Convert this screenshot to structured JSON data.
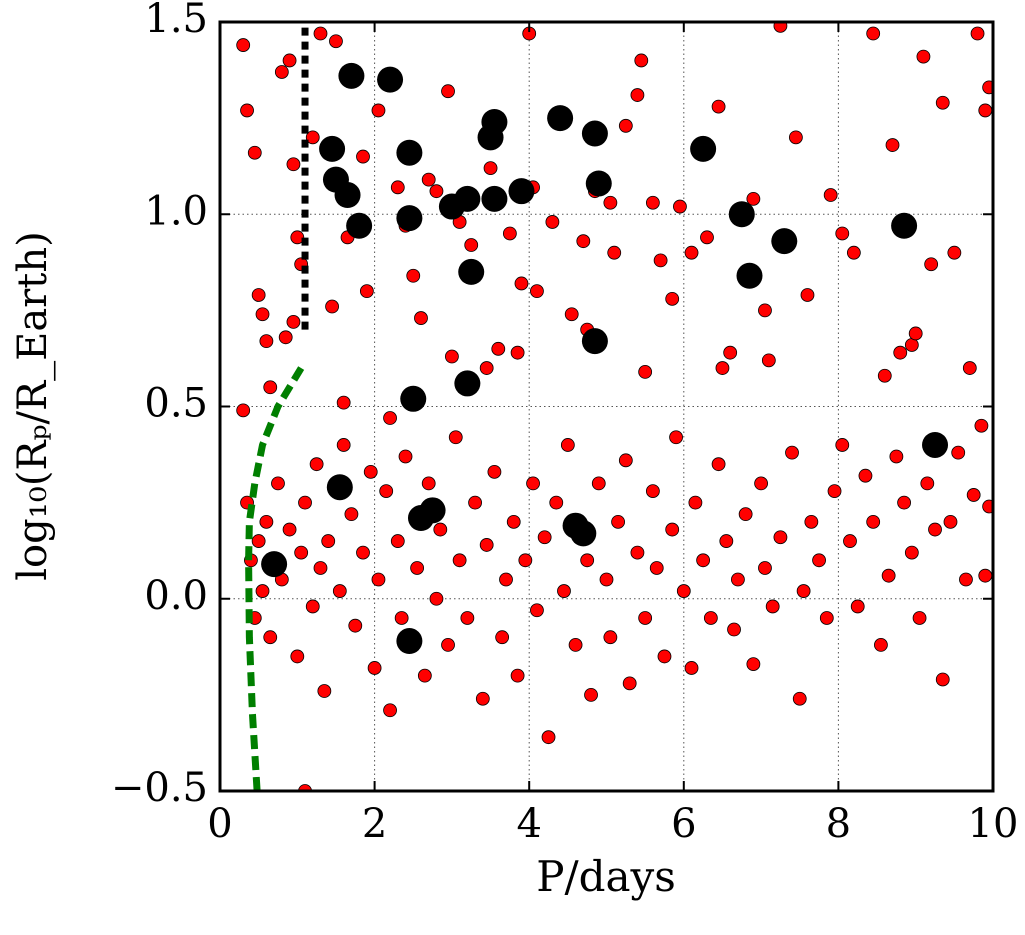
{
  "chart_data": {
    "type": "scatter",
    "x_label": "P/days",
    "y_label": "log₁₀(Rₚ/R_Earth)",
    "xlim": [
      0,
      10
    ],
    "ylim": [
      -0.5,
      1.5
    ],
    "xticks": [
      0,
      2,
      4,
      6,
      8,
      10
    ],
    "yticks": [
      {
        "value": -0.5,
        "label": "−0.5"
      },
      {
        "value": 0,
        "label": "0.0"
      },
      0.5,
      {
        "value": 1,
        "label": "1.0"
      },
      1.5
    ],
    "grid": true,
    "series": [
      {
        "kind": "scatter",
        "marker": "small",
        "color": "#ff0000",
        "x": [
          0.3,
          0.35,
          0.45,
          0.5,
          0.55,
          0.6,
          0.8,
          0.9,
          0.95,
          1.0,
          1.05,
          0.85,
          1.3,
          1.5,
          1.2,
          1.65,
          1.85,
          1.9,
          1.45,
          2.05,
          2.3,
          2.4,
          2.5,
          2.6,
          2.7,
          2.8,
          2.95,
          3.1,
          3.25,
          3.45,
          3.5,
          3.75,
          3.9,
          4.0,
          4.05,
          4.1,
          4.3,
          4.55,
          4.7,
          4.85
        ],
        "values": [
          1.44,
          1.27,
          1.16,
          0.79,
          0.74,
          0.67,
          1.37,
          1.4,
          1.13,
          0.94,
          0.87,
          0.68,
          1.47,
          1.45,
          1.2,
          0.94,
          1.15,
          0.8,
          0.76,
          1.27,
          1.07,
          0.97,
          0.84,
          0.73,
          1.09,
          1.06,
          1.32,
          0.98,
          0.92,
          0.6,
          1.12,
          0.95,
          0.82,
          1.47,
          1.07,
          0.8,
          0.98,
          0.74,
          0.93,
          1.06
        ]
      },
      {
        "kind": "scatter",
        "marker": "small",
        "color": "#ff0000",
        "x": [
          5.05,
          5.1,
          5.25,
          5.4,
          5.45,
          5.6,
          5.7,
          5.85,
          5.95,
          6.1,
          6.3,
          6.45,
          6.6,
          6.9,
          7.05,
          7.25,
          7.45,
          7.6,
          7.9,
          8.05,
          8.2,
          8.45,
          8.7,
          8.8,
          8.95,
          9.1,
          9.2,
          9.35,
          9.5,
          9.8,
          9.95,
          9.9,
          0.95,
          3.0,
          3.6,
          3.85,
          5.5,
          6.5,
          7.1,
          8.6,
          9.0,
          9.7,
          4.75,
          2.2,
          1.6,
          0.3,
          1.1,
          0.65
        ],
        "values": [
          1.03,
          0.9,
          1.23,
          1.31,
          1.4,
          1.03,
          0.88,
          0.78,
          1.02,
          0.9,
          0.94,
          1.28,
          0.64,
          1.04,
          0.75,
          1.49,
          1.2,
          0.79,
          1.05,
          0.95,
          0.9,
          1.47,
          1.18,
          0.64,
          0.66,
          1.41,
          0.87,
          1.29,
          0.9,
          1.47,
          1.33,
          1.27,
          0.72,
          0.63,
          0.65,
          0.64,
          0.59,
          0.6,
          0.62,
          0.58,
          0.69,
          0.6,
          0.7,
          0.47,
          0.51,
          0.49,
          -0.5,
          0.55
        ]
      },
      {
        "kind": "scatter",
        "marker": "small",
        "color": "#ff0000",
        "x": [
          0.35,
          0.4,
          0.45,
          0.5,
          0.55,
          0.6,
          0.65,
          0.75,
          0.8,
          0.9,
          1.0,
          1.05,
          1.1,
          1.2,
          1.25,
          1.3,
          1.35,
          1.4,
          1.55,
          1.6,
          1.7,
          1.75,
          1.85,
          1.95,
          2.0,
          2.05,
          2.15,
          2.2,
          2.3,
          2.35,
          2.4,
          2.55,
          2.65,
          2.7,
          2.8,
          2.85,
          2.95,
          3.05,
          3.1,
          3.2,
          3.3,
          3.4,
          3.45,
          3.55,
          3.65,
          3.7,
          3.8,
          3.85,
          3.95,
          4.05,
          4.1,
          4.2,
          4.25,
          4.35,
          4.45,
          4.5,
          4.6,
          4.75,
          4.8,
          4.9,
          5.0,
          5.05,
          5.15,
          5.25,
          5.3,
          5.4,
          5.5,
          5.6,
          5.65,
          5.75,
          5.85,
          5.9,
          6.0,
          6.1,
          6.15,
          6.25,
          6.35,
          6.45,
          6.55,
          6.65,
          6.7,
          6.8,
          6.9,
          7.0,
          7.05,
          7.15,
          7.25,
          7.4,
          7.5,
          7.55,
          7.65,
          7.75,
          7.85,
          7.95,
          8.05,
          8.15,
          8.25,
          8.35,
          8.45,
          8.55,
          8.65,
          8.75,
          8.85,
          8.95,
          9.05,
          9.15,
          9.25,
          9.35,
          9.45,
          9.55,
          9.65,
          9.75,
          9.85,
          9.95,
          9.9
        ],
        "values": [
          0.25,
          0.1,
          -0.05,
          0.15,
          0.02,
          0.2,
          -0.1,
          0.3,
          0.05,
          0.18,
          -0.15,
          0.12,
          0.25,
          -0.02,
          0.35,
          0.08,
          -0.24,
          0.15,
          0.02,
          0.4,
          0.22,
          -0.07,
          0.12,
          0.33,
          -0.18,
          0.05,
          0.28,
          -0.29,
          0.15,
          -0.05,
          0.37,
          0.08,
          -0.2,
          0.3,
          0.0,
          0.18,
          -0.12,
          0.42,
          0.1,
          -0.05,
          0.25,
          -0.26,
          0.14,
          0.33,
          -0.1,
          0.05,
          0.2,
          -0.2,
          0.1,
          0.3,
          -0.03,
          0.16,
          -0.36,
          0.25,
          0.02,
          0.4,
          -0.12,
          0.1,
          -0.25,
          0.3,
          0.05,
          -0.1,
          0.2,
          0.36,
          -0.22,
          0.12,
          -0.05,
          0.28,
          0.08,
          -0.15,
          0.18,
          0.42,
          0.02,
          -0.18,
          0.25,
          0.1,
          -0.05,
          0.35,
          0.15,
          -0.08,
          0.05,
          0.22,
          -0.17,
          0.3,
          0.08,
          -0.02,
          0.16,
          0.38,
          -0.26,
          0.02,
          0.2,
          0.1,
          -0.05,
          0.28,
          0.4,
          0.15,
          -0.02,
          0.32,
          0.2,
          -0.12,
          0.06,
          0.37,
          0.25,
          0.12,
          -0.05,
          0.3,
          0.18,
          -0.21,
          0.2,
          0.38,
          0.05,
          0.27,
          0.45,
          0.24,
          0.06
        ]
      },
      {
        "kind": "scatter",
        "marker": "large",
        "color": "#000000",
        "x": [
          1.45,
          1.5,
          1.7,
          1.65,
          1.8,
          2.2,
          2.45,
          2.45,
          3.0,
          3.2,
          3.55,
          3.5,
          3.55,
          3.9,
          3.25,
          4.4,
          4.85,
          4.9,
          4.85,
          6.25,
          6.75,
          6.85,
          7.3,
          8.85,
          9.25,
          2.5,
          3.2,
          1.55,
          2.6,
          2.75,
          4.6,
          4.7,
          2.45,
          0.7
        ],
        "values": [
          1.17,
          1.09,
          1.36,
          1.05,
          0.97,
          1.35,
          1.16,
          0.99,
          1.02,
          1.04,
          1.24,
          1.2,
          1.04,
          1.06,
          0.85,
          1.25,
          1.21,
          1.08,
          0.67,
          1.17,
          1.0,
          0.84,
          0.93,
          0.97,
          0.4,
          0.52,
          0.56,
          0.29,
          0.21,
          0.23,
          0.19,
          0.17,
          -0.11,
          0.09
        ]
      },
      {
        "kind": "line",
        "dash": "dashed",
        "color": "#007f00",
        "x": [
          0.48,
          0.42,
          0.38,
          0.37,
          0.38,
          0.45,
          0.55,
          0.75,
          1.05
        ],
        "values": [
          -0.5,
          -0.3,
          -0.1,
          0.1,
          0.2,
          0.3,
          0.4,
          0.5,
          0.6
        ]
      },
      {
        "kind": "line",
        "dash": "dotted",
        "color": "#000000",
        "x": [
          1.1,
          1.1
        ],
        "values": [
          0.7,
          1.5
        ]
      }
    ]
  }
}
